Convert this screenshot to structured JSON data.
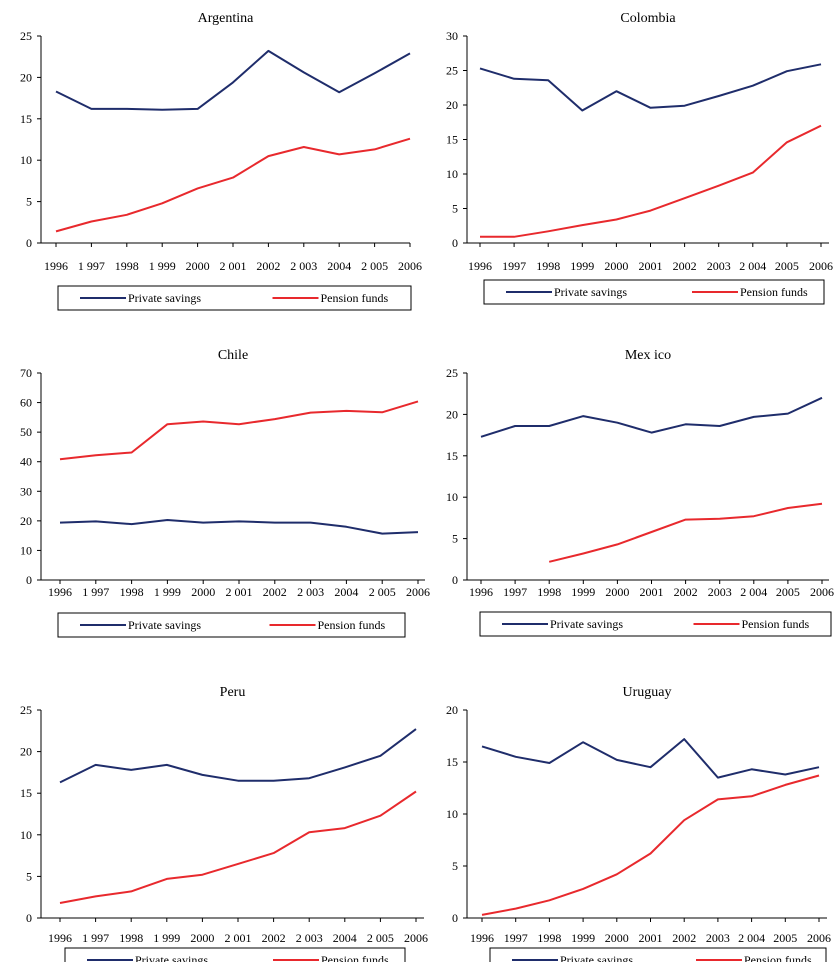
{
  "colors": {
    "private_savings": "#1f2d6b",
    "pension_funds": "#e8292d",
    "axis": "#000000"
  },
  "legend_labels": {
    "private_savings": "Private savings",
    "pension_funds": "Pension funds"
  },
  "chart_data": [
    {
      "type": "line",
      "title": "Argentina",
      "x_tick_labels": [
        "1996",
        "1 997",
        "1998",
        "1 999",
        "2000",
        "2 001",
        "2002",
        "2 003",
        "2004",
        "2 005",
        "2006"
      ],
      "ylim": [
        0,
        25
      ],
      "yticks": [
        0,
        5,
        10,
        15,
        20,
        25
      ],
      "legend": "bottom",
      "series": [
        {
          "name": "Private savings",
          "color": "#1f2d6b",
          "values": [
            18.3,
            16.2,
            16.2,
            16.1,
            16.2,
            19.4,
            23.2,
            20.6,
            18.2,
            20.5,
            22.9
          ]
        },
        {
          "name": "Pension funds",
          "color": "#e8292d",
          "values": [
            1.4,
            2.6,
            3.4,
            4.8,
            6.6,
            7.9,
            10.5,
            11.6,
            10.7,
            11.3,
            12.6
          ]
        }
      ]
    },
    {
      "type": "line",
      "title": "Colombia",
      "x_tick_labels": [
        "1996",
        "1997",
        "1998",
        "1999",
        "2000",
        "2001",
        "2002",
        "2003",
        "2 004",
        "2005",
        "2006"
      ],
      "ylim": [
        0,
        30
      ],
      "yticks": [
        0,
        5,
        10,
        15,
        20,
        25,
        30
      ],
      "legend": "bottom",
      "series": [
        {
          "name": "Private savings",
          "color": "#1f2d6b",
          "values": [
            25.3,
            23.8,
            23.6,
            19.2,
            22.0,
            19.6,
            19.9,
            21.3,
            22.8,
            24.9,
            25.9
          ]
        },
        {
          "name": "Pension funds",
          "color": "#e8292d",
          "values": [
            0.9,
            0.9,
            1.7,
            2.6,
            3.4,
            4.7,
            6.5,
            8.3,
            10.2,
            14.6,
            17.0
          ]
        }
      ]
    },
    {
      "type": "line",
      "title": "Chile",
      "x_tick_labels": [
        "1996",
        "1 997",
        "1998",
        "1 999",
        "2000",
        "2 001",
        "2002",
        "2 003",
        "2004",
        "2 005",
        "2006"
      ],
      "ylim": [
        0,
        70
      ],
      "yticks": [
        0,
        10,
        20,
        30,
        40,
        50,
        60,
        70
      ],
      "legend": "bottom",
      "series": [
        {
          "name": "Private savings",
          "color": "#1f2d6b",
          "values": [
            19.4,
            19.8,
            18.9,
            20.3,
            19.4,
            19.8,
            19.4,
            19.4,
            18.0,
            15.7,
            16.2
          ]
        },
        {
          "name": "Pension funds",
          "color": "#e8292d",
          "values": [
            40.8,
            42.2,
            43.1,
            52.7,
            53.6,
            52.7,
            54.4,
            56.6,
            57.2,
            56.7,
            60.4
          ]
        }
      ]
    },
    {
      "type": "line",
      "title": "Mex ico",
      "x_tick_labels": [
        "1996",
        "1997",
        "1998",
        "1999",
        "2000",
        "2001",
        "2002",
        "2003",
        "2 004",
        "2005",
        "2006"
      ],
      "ylim": [
        0,
        25
      ],
      "yticks": [
        0,
        5,
        10,
        15,
        20,
        25
      ],
      "legend": "bottom",
      "series": [
        {
          "name": "Private savings",
          "color": "#1f2d6b",
          "values": [
            17.3,
            18.6,
            18.6,
            19.8,
            19.0,
            17.8,
            18.8,
            18.6,
            19.7,
            20.1,
            22.0
          ]
        },
        {
          "name": "Pension funds",
          "color": "#e8292d",
          "values": [
            null,
            null,
            2.2,
            3.2,
            4.3,
            5.8,
            7.3,
            7.4,
            7.7,
            8.7,
            9.2
          ]
        }
      ]
    },
    {
      "type": "line",
      "title": "Peru",
      "x_tick_labels": [
        "1996",
        "1 997",
        "1998",
        "1 999",
        "2000",
        "2 001",
        "2002",
        "2 003",
        "2004",
        "2 005",
        "2006"
      ],
      "ylim": [
        0,
        25
      ],
      "yticks": [
        0,
        5,
        10,
        15,
        20,
        25
      ],
      "legend": "bottom",
      "series": [
        {
          "name": "Private savings",
          "color": "#1f2d6b",
          "values": [
            16.3,
            18.4,
            17.8,
            18.4,
            17.2,
            16.5,
            16.5,
            16.8,
            18.1,
            19.5,
            22.7
          ]
        },
        {
          "name": "Pension funds",
          "color": "#e8292d",
          "values": [
            1.8,
            2.6,
            3.2,
            4.7,
            5.2,
            6.5,
            7.8,
            10.3,
            10.8,
            12.3,
            15.2
          ]
        }
      ]
    },
    {
      "type": "line",
      "title": "Uruguay",
      "x_tick_labels": [
        "1996",
        "1997",
        "1998",
        "1999",
        "2000",
        "2001",
        "2002",
        "2003",
        "2 004",
        "2005",
        "2006"
      ],
      "ylim": [
        0,
        20
      ],
      "yticks": [
        0,
        5,
        10,
        15,
        20
      ],
      "legend": "bottom",
      "series": [
        {
          "name": "Private savings",
          "color": "#1f2d6b",
          "values": [
            16.5,
            15.5,
            14.9,
            16.9,
            15.2,
            14.5,
            17.2,
            13.5,
            14.3,
            13.8,
            14.5
          ]
        },
        {
          "name": "Pension funds",
          "color": "#e8292d",
          "values": [
            0.3,
            0.9,
            1.7,
            2.8,
            4.2,
            6.2,
            9.4,
            11.4,
            11.7,
            12.8,
            13.7
          ]
        }
      ]
    }
  ]
}
